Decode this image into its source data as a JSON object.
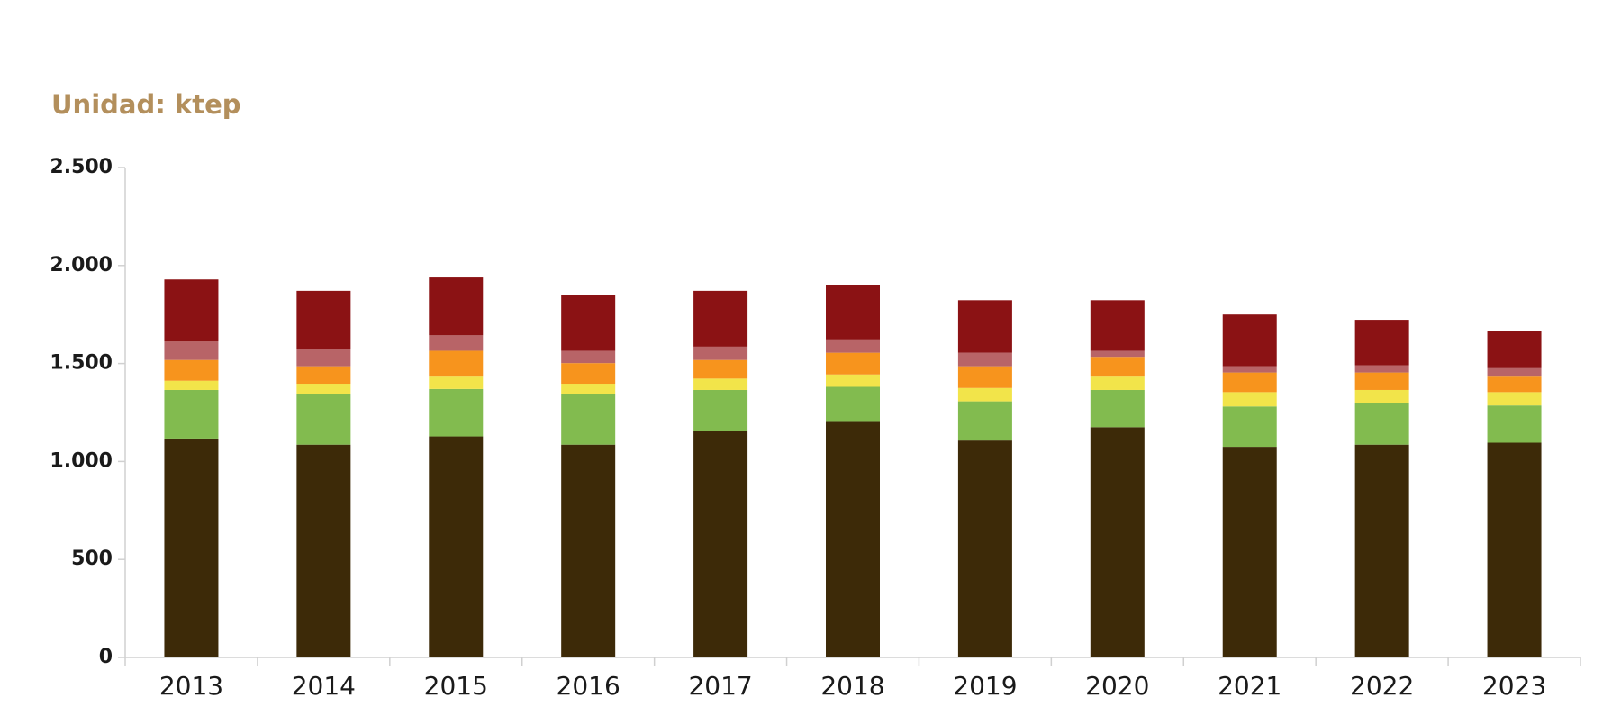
{
  "chart_data": {
    "type": "stacked-bar",
    "subtitle": "Unidad: ktep",
    "categories": [
      "2013",
      "2014",
      "2015",
      "2016",
      "2017",
      "2018",
      "2019",
      "2020",
      "2021",
      "2022",
      "2023"
    ],
    "series": [
      {
        "color": "#3d2a08",
        "values": [
          1117,
          1086,
          1128,
          1086,
          1154,
          1202,
          1107,
          1175,
          1075,
          1086,
          1096
        ]
      },
      {
        "color": "#82bb4f",
        "values": [
          248,
          258,
          242,
          258,
          211,
          179,
          200,
          190,
          206,
          210,
          190
        ]
      },
      {
        "color": "#f2e44a",
        "values": [
          47,
          53,
          63,
          53,
          58,
          63,
          68,
          68,
          73,
          69,
          68
        ]
      },
      {
        "color": "#f7941d",
        "values": [
          106,
          89,
          132,
          105,
          95,
          111,
          111,
          101,
          100,
          89,
          79
        ]
      },
      {
        "color": "#b86467",
        "values": [
          95,
          90,
          79,
          63,
          68,
          68,
          69,
          31,
          32,
          37,
          43
        ]
      },
      {
        "color": "#8b1214",
        "values": [
          316,
          295,
          295,
          285,
          285,
          279,
          268,
          258,
          264,
          232,
          189
        ]
      }
    ],
    "ylim": [
      0,
      2500
    ],
    "yticks": [
      0,
      500,
      {
        "value": 1000,
        "label": "1.000"
      },
      {
        "value": 1500,
        "label": "1.500"
      },
      {
        "value": 2000,
        "label": "2.000"
      },
      {
        "value": 2500,
        "label": "2.500"
      }
    ]
  }
}
